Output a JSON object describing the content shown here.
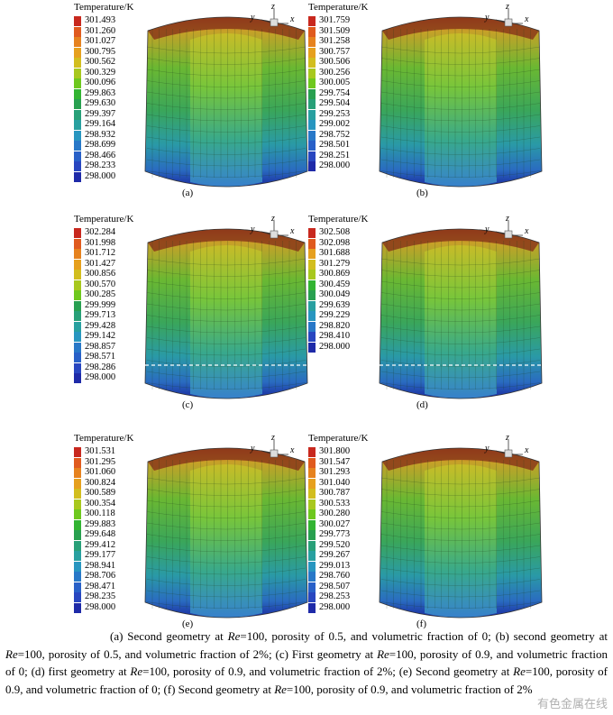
{
  "legend_title": "Temperature/K",
  "axis_labels": {
    "x": "x",
    "y": "y",
    "z": "z"
  },
  "panels": [
    {
      "id": "a",
      "label": "(a)",
      "values": [
        "301.493",
        "301.260",
        "301.027",
        "300.795",
        "300.562",
        "300.329",
        "300.096",
        "299.863",
        "299.630",
        "299.397",
        "299.164",
        "298.932",
        "298.699",
        "298.466",
        "298.233",
        "298.000"
      ],
      "dashed_line": false
    },
    {
      "id": "b",
      "label": "(b)",
      "values": [
        "301.759",
        "301.509",
        "301.258",
        "300.757",
        "300.506",
        "300.256",
        "300.005",
        "299.754",
        "299.504",
        "299.253",
        "299.002",
        "298.752",
        "298.501",
        "298.251",
        "298.000"
      ],
      "dashed_line": false
    },
    {
      "id": "c",
      "label": "(c)",
      "values": [
        "302.284",
        "301.998",
        "301.712",
        "301.427",
        "300.856",
        "300.570",
        "300.285",
        "299.999",
        "299.713",
        "299.428",
        "299.142",
        "298.857",
        "298.571",
        "298.286",
        "298.000"
      ],
      "dashed_line": true
    },
    {
      "id": "d",
      "label": "(d)",
      "values": [
        "302.508",
        "302.098",
        "301.688",
        "301.279",
        "300.869",
        "300.459",
        "300.049",
        "299.639",
        "299.229",
        "298.820",
        "298.410",
        "298.000"
      ],
      "dashed_line": true
    },
    {
      "id": "e",
      "label": "(e)",
      "values": [
        "301.531",
        "301.295",
        "301.060",
        "300.824",
        "300.589",
        "300.354",
        "300.118",
        "299.883",
        "299.648",
        "299.412",
        "299.177",
        "298.941",
        "298.706",
        "298.471",
        "298.235",
        "298.000"
      ],
      "dashed_line": false
    },
    {
      "id": "f",
      "label": "(f)",
      "values": [
        "301.800",
        "301.547",
        "301.293",
        "301.040",
        "300.787",
        "300.533",
        "300.280",
        "300.027",
        "299.773",
        "299.520",
        "299.267",
        "299.013",
        "298.760",
        "298.507",
        "298.253",
        "298.000"
      ],
      "dashed_line": false
    }
  ],
  "caption": {
    "parts": [
      "(a) Second geometry at ",
      "Re",
      "=100, porosity of 0.5, and volumetric fraction of 0; (b) second geometry at ",
      "Re",
      "=100, porosity of 0.5, and volumetric fraction of 2%; (c) First geometry at ",
      "Re",
      "=100, porosity of 0.9, and volumetric fraction of 0; (d) first geometry at ",
      "Re",
      "=100, porosity of 0.9, and volumetric fraction of 2%; (e) Second geometry at ",
      "Re",
      "=100, porosity of 0.9, and volumetric fraction of 0; (f) Second geometry at ",
      "Re",
      "=100, porosity of 0.9, and volumetric fraction of 2%"
    ]
  },
  "watermark": "有色金属在线"
}
